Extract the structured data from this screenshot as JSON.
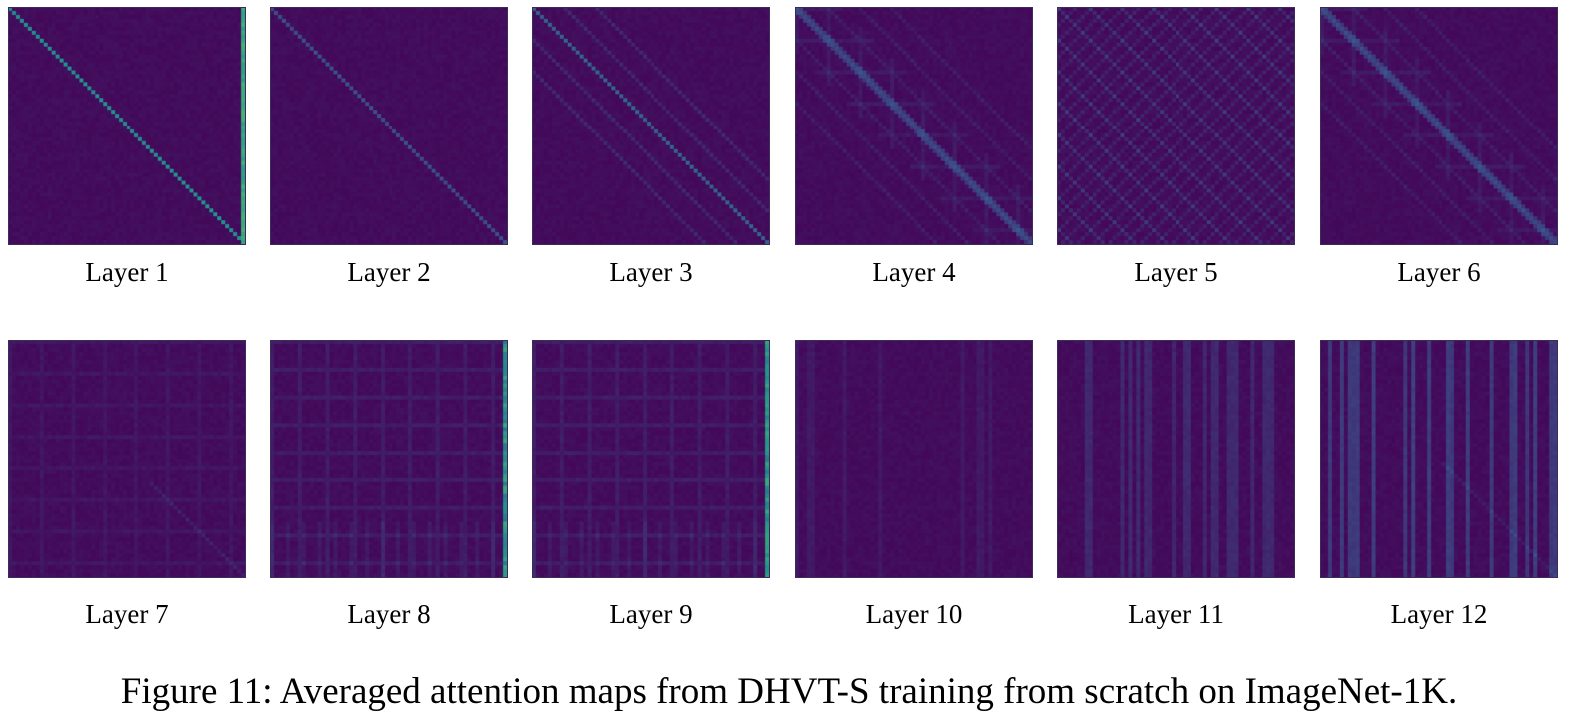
{
  "figure": {
    "caption": "Figure 11: Averaged attention maps from DHVT-S training from scratch on ImageNet-1K.",
    "colormap": [
      "#440154",
      "#3b528b",
      "#21918c",
      "#5ec962",
      "#fde725"
    ],
    "panels": [
      {
        "label": "Layer 1",
        "pattern": "sharp-diagonal, bright right column"
      },
      {
        "label": "Layer 2",
        "pattern": "faint diagonal"
      },
      {
        "label": "Layer 3",
        "pattern": "diagonal with parallel off-diagonals"
      },
      {
        "label": "Layer 4",
        "pattern": "banded diagonal"
      },
      {
        "label": "Layer 5",
        "pattern": "checkerboard diagonal bands"
      },
      {
        "label": "Layer 6",
        "pattern": "banded diagonal"
      },
      {
        "label": "Layer 7",
        "pattern": "faint grid"
      },
      {
        "label": "Layer 8",
        "pattern": "grid, bright right column"
      },
      {
        "label": "Layer 9",
        "pattern": "grid, bright right column"
      },
      {
        "label": "Layer 10",
        "pattern": "faint vertical stripes"
      },
      {
        "label": "Layer 11",
        "pattern": "vertical stripes"
      },
      {
        "label": "Layer 12",
        "pattern": "strong vertical stripes"
      }
    ]
  }
}
